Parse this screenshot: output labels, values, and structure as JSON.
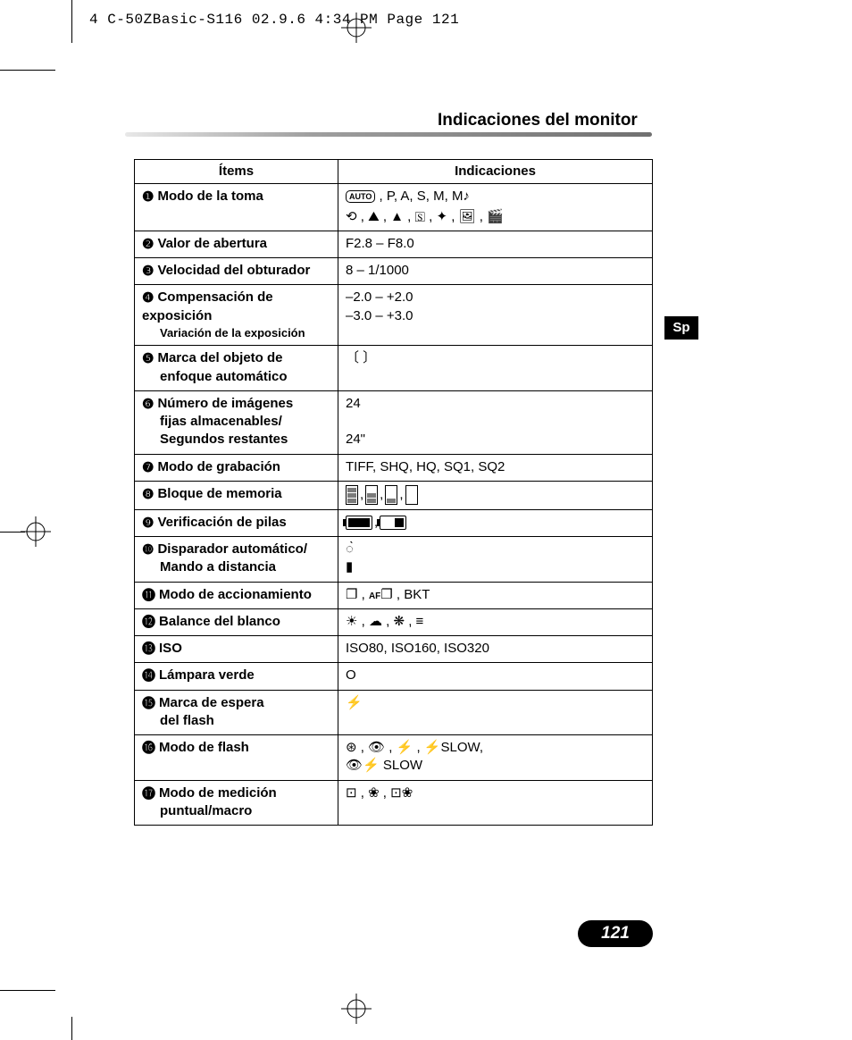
{
  "slug": "4 C-50ZBasic-S116  02.9.6 4:34 PM  Page 121",
  "header": "Indicaciones del monitor",
  "lang_tab": "Sp",
  "page_number": "121",
  "table": {
    "headers": {
      "items": "Ítems",
      "indications": "Indicaciones"
    },
    "rows": [
      {
        "n": "1",
        "label": "Modo de la toma",
        "ind_html": "<span class='auto'>AUTO</span> , P, A, S, M, <span class='ic'>M♪</span><span class='row2'>⟲ , ⛰ , ▲ , 🅂 , ✦ , 🖼 , 🎬</span>"
      },
      {
        "n": "2",
        "label": "Valor de abertura",
        "ind": "F2.8 – F8.0"
      },
      {
        "n": "3",
        "label": "Velocidad del obturador",
        "ind": "8 – 1/1000"
      },
      {
        "n": "4",
        "label": "Compensación de exposición",
        "sub": "Variación de la exposición",
        "ind": "–2.0 – +2.0\n–3.0 – +3.0"
      },
      {
        "n": "5",
        "label": "Marca del objeto de",
        "line2": "enfoque automático",
        "ind_html": "〔 〕"
      },
      {
        "n": "6",
        "label": "Número de imágenes",
        "line2": "fijas almacenables/\nSegundos restantes",
        "ind": "24\n\n24\""
      },
      {
        "n": "7",
        "label": "Modo de grabación",
        "ind": "TIFF, SHQ, HQ, SQ1, SQ2"
      },
      {
        "n": "8",
        "label": "Bloque de memoria",
        "ind_html": "<span class='mem b3'><i></i><i></i><i></i></span><span class='sep'>,</span><span class='mem b2'><i></i><i></i></span><span class='sep'>,</span><span class='mem b1'><i></i></span><span class='sep'>,</span><span class='mem'></span>"
      },
      {
        "n": "9",
        "label": "Verificación de pilas",
        "ind_html": "<span class='batt full'></span><span class='sep'>,</span><span class='batt half'></span>"
      },
      {
        "n": "10",
        "label": "Disparador automático/",
        "line2": "Mando a distancia",
        "ind_html": "◌̀<br>▮"
      },
      {
        "n": "11",
        "label": "Modo de accionamiento",
        "ind_html": "❐ , <span style='font-size:10px;font-weight:bold'>AF</span>❐ , BKT"
      },
      {
        "n": "12",
        "label": "Balance del blanco",
        "ind_html": "☀ , ☁ , ❋ , ≡"
      },
      {
        "n": "13",
        "label": "ISO",
        "ind": "ISO80, ISO160, ISO320"
      },
      {
        "n": "14",
        "label": "Lámpara verde",
        "ind": "O"
      },
      {
        "n": "15",
        "label": "Marca de espera",
        "line2": "del flash",
        "ind_html": "⚡"
      },
      {
        "n": "16",
        "label": "Modo de flash",
        "ind_html": "⊛ , 👁 , ⚡ , ⚡SLOW,<br>👁⚡ SLOW"
      },
      {
        "n": "17",
        "label": "Modo de medición",
        "line2": "puntual/macro",
        "ind_html": "⊡ , ❀ , ⊡❀"
      }
    ]
  },
  "circled": [
    "❶",
    "❷",
    "❸",
    "❹",
    "❺",
    "❻",
    "❼",
    "❽",
    "❾",
    "❿",
    "⓫",
    "⓬",
    "⓭",
    "⓮",
    "⓯",
    "⓰",
    "⓱"
  ],
  "colors": {
    "hr_light": "#e8e8e8",
    "hr_dark": "#707070",
    "mem_fill": "#7b7b7b",
    "bg": "#ffffff",
    "fg": "#000000"
  }
}
